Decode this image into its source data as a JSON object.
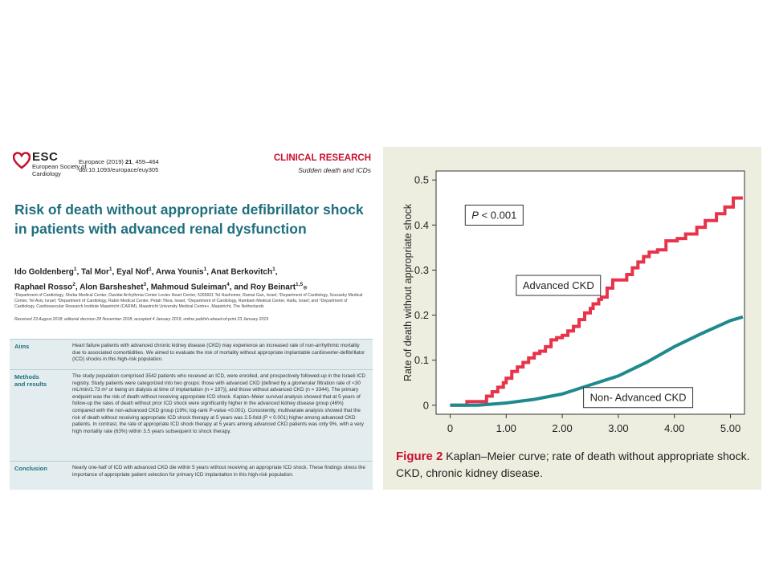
{
  "article": {
    "logo": {
      "name": "ESC",
      "subtitle": "European Society of Cardiology"
    },
    "journal_name": "Europace (2019) ",
    "journal_volume": "21",
    "journal_pages": ", 459–464",
    "doi": "doi:10.1093/europace/euy305",
    "section": "CLINICAL RESEARCH",
    "subsection": "Sudden death and ICDs",
    "title": "Risk of death without appropriate defibrillator shock in patients with advanced renal dysfunction",
    "authors": [
      {
        "name": "Ido Goldenberg",
        "sup": "1"
      },
      {
        "name": "Tal Mor",
        "sup": "1"
      },
      {
        "name": "Eyal Nof",
        "sup": "1"
      },
      {
        "name": "Arwa Younis",
        "sup": "1"
      },
      {
        "name": "Anat Berkovitch",
        "sup": "1"
      },
      {
        "name": "Raphael Rosso",
        "sup": "2"
      },
      {
        "name": "Alon Barsheshet",
        "sup": "3"
      },
      {
        "name": "Mahmoud Suleiman",
        "sup": "4"
      },
      {
        "name": "and Roy Beinart",
        "sup": "1,5"
      }
    ],
    "affiliations": "¹Department of Cardiology, Sheba Medical Center, Davidai Arrhythmia Center Leviev Heart Center, 5265601 Tel Hashomer, Ramat Gan, Israel; ²Department of Cardiology, Sourasky Medical Center, Tel Aviv, Israel; ³Department of Cardiology, Rabin Medical Center, Petah Tikva, Israel; ⁴Department of Cardiology, Rambam Medical Center, Haifa, Israel; and ⁵Department of Cardiology, Cardiovascular Research Institute Maastricht (CARIM), Maastricht University Medical Centre+, Maastricht, The Netherlands",
    "received": "Received 23 August 2018; editorial decision 28 November 2018; accepted 4 January 2019; online publish-ahead-of-print 23 January 2019",
    "abstract": {
      "aims_label": "Aims",
      "aims_text": "Heart failure patients with advanced chronic kidney disease (CKD) may experience an increased rate of non-arrhythmic mortality due to associated comorbidities. We aimed to evaluate the risk of mortality without appropriate implantable cardioverter-defibrillator (ICD) shocks in this high-risk population.",
      "methods_label_1": "Methods",
      "methods_label_2": "and results",
      "methods_text": "The study population comprised 3542 patients who received an ICD, were enrolled, and prospectively followed-up in the Israeli ICD registry. Study patients were categorized into two groups: those with advanced CKD [defined by a glomerular filtration rate of <30 mL/min/1.73 m² or being on dialysis at time of implantation (n = 197)], and those without advanced CKD (n = 3344). The primary endpoint was the risk of death without receiving appropriate ICD shock. Kaplan–Meier survival analysis showed that at 5 years of follow-up the rates of death without prior ICD shock were significantly higher in the advanced kidney disease group (46%) compared with the non-advanced CKD group (19%; log-rank P-value <0.001). Consistently, multivariate analysis showed that the risk of death without receiving appropriate ICD shock therapy at 5 years was 2.5-fold (P < 0.001) higher among advanced CKD patients. In contrast, the rate of appropriate ICD shock therapy at 5 years among advanced CKD patients was only 9%, with a very high mortality rate (63%) within 3.5 years subsequent to shock therapy.",
      "conclusion_label": "Conclusion",
      "conclusion_text": "Nearly one-half of ICD with advanced CKD die within 5 years without receiving an appropriate ICD shock. These findings stress the importance of appropriate patient selection for primary ICD implantation in this high-risk population."
    }
  },
  "figure": {
    "caption_label": "Figure 2",
    "caption_text": " Kaplan–Meier curve; rate of death without appropriate shock. CKD, chronic kidney disease.",
    "colors": {
      "advanced": "#e8344a",
      "non_advanced": "#1e8a8e",
      "background": "#eeeee0"
    }
  },
  "chart_data": {
    "type": "line",
    "title": "",
    "xlabel": "",
    "ylabel": "Rate of death without appropriate shock",
    "xlim": [
      -0.25,
      5.25
    ],
    "ylim": [
      -0.02,
      0.52
    ],
    "x_ticks": [
      0,
      1,
      2,
      3,
      4,
      5
    ],
    "x_tick_labels": [
      "0",
      "1.00",
      "2.00",
      "3.00",
      "4.00",
      "5.00"
    ],
    "y_ticks": [
      0,
      0.1,
      0.2,
      0.3,
      0.4,
      0.5
    ],
    "y_tick_labels": [
      "0",
      "0.1",
      "0.2",
      "0.3",
      "0.4",
      "0.5"
    ],
    "annotations": [
      {
        "text": "P < 0.001",
        "italic_prefix": "P",
        "rest": " < 0.001",
        "x": 0.27,
        "y": 0.422
      },
      {
        "text": "Advanced CKD",
        "x": 1.18,
        "y": 0.266
      },
      {
        "text": "Non- Advanced CKD",
        "x": 2.38,
        "y": 0.017
      }
    ],
    "series": [
      {
        "name": "Advanced CKD",
        "step": true,
        "points": [
          [
            0,
            0
          ],
          [
            0.3,
            0
          ],
          [
            0.3,
            0.008
          ],
          [
            0.6,
            0.008
          ],
          [
            0.65,
            0.02
          ],
          [
            0.75,
            0.03
          ],
          [
            0.85,
            0.04
          ],
          [
            0.95,
            0.05
          ],
          [
            1.0,
            0.06
          ],
          [
            1.1,
            0.075
          ],
          [
            1.2,
            0.085
          ],
          [
            1.3,
            0.095
          ],
          [
            1.4,
            0.105
          ],
          [
            1.5,
            0.115
          ],
          [
            1.6,
            0.12
          ],
          [
            1.7,
            0.13
          ],
          [
            1.8,
            0.145
          ],
          [
            1.9,
            0.15
          ],
          [
            2.0,
            0.155
          ],
          [
            2.1,
            0.165
          ],
          [
            2.2,
            0.175
          ],
          [
            2.3,
            0.19
          ],
          [
            2.4,
            0.205
          ],
          [
            2.5,
            0.215
          ],
          [
            2.55,
            0.225
          ],
          [
            2.65,
            0.235
          ],
          [
            2.7,
            0.24
          ],
          [
            2.8,
            0.26
          ],
          [
            2.9,
            0.278
          ],
          [
            3.1,
            0.278
          ],
          [
            3.15,
            0.29
          ],
          [
            3.25,
            0.305
          ],
          [
            3.35,
            0.318
          ],
          [
            3.45,
            0.33
          ],
          [
            3.55,
            0.34
          ],
          [
            3.7,
            0.345
          ],
          [
            3.85,
            0.365
          ],
          [
            4.05,
            0.37
          ],
          [
            4.2,
            0.38
          ],
          [
            4.4,
            0.395
          ],
          [
            4.55,
            0.41
          ],
          [
            4.75,
            0.425
          ],
          [
            4.9,
            0.44
          ],
          [
            5.05,
            0.46
          ],
          [
            5.22,
            0.46
          ]
        ]
      },
      {
        "name": "Non- Advanced CKD",
        "step": false,
        "points": [
          [
            0,
            0
          ],
          [
            0.5,
            0
          ],
          [
            1.0,
            0.005
          ],
          [
            1.5,
            0.013
          ],
          [
            2.0,
            0.025
          ],
          [
            2.5,
            0.045
          ],
          [
            3.0,
            0.065
          ],
          [
            3.5,
            0.095
          ],
          [
            4.0,
            0.13
          ],
          [
            4.5,
            0.16
          ],
          [
            5.0,
            0.188
          ],
          [
            5.22,
            0.196
          ]
        ]
      }
    ]
  }
}
